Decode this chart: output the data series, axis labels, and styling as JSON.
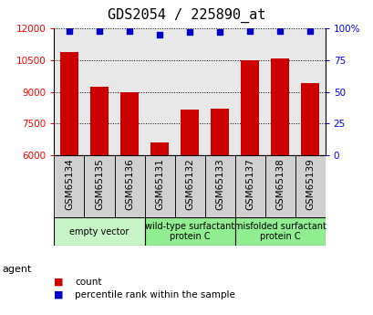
{
  "title": "GDS2054 / 225890_at",
  "samples": [
    "GSM65134",
    "GSM65135",
    "GSM65136",
    "GSM65131",
    "GSM65132",
    "GSM65133",
    "GSM65137",
    "GSM65138",
    "GSM65139"
  ],
  "counts": [
    10900,
    9250,
    9000,
    6600,
    8150,
    8200,
    10500,
    10600,
    9400
  ],
  "percentiles": [
    98,
    98,
    98,
    95,
    97,
    97,
    98,
    98,
    98
  ],
  "y_min": 6000,
  "y_max": 12000,
  "y_ticks": [
    6000,
    7500,
    9000,
    10500,
    12000
  ],
  "y2_ticks": [
    0,
    25,
    50,
    75,
    100
  ],
  "bar_color": "#cc0000",
  "dot_color": "#0000cc",
  "grid_color": "#000000",
  "bar_bg_color": "#e8e8e8",
  "sample_cell_color": "#d0d0d0",
  "groups": [
    {
      "label": "empty vector",
      "start": 0,
      "end": 3,
      "color": "#c8f5c8"
    },
    {
      "label": "wild-type surfactant\nprotein C",
      "start": 3,
      "end": 6,
      "color": "#90ee90"
    },
    {
      "label": "misfolded surfactant\nprotein C",
      "start": 6,
      "end": 9,
      "color": "#90ee90"
    }
  ],
  "legend_items": [
    {
      "color": "#cc0000",
      "label": "count"
    },
    {
      "color": "#0000cc",
      "label": "percentile rank within the sample"
    }
  ],
  "agent_label": "agent",
  "title_fontsize": 11,
  "tick_fontsize": 7.5,
  "group_fontsize": 7,
  "legend_fontsize": 7.5
}
